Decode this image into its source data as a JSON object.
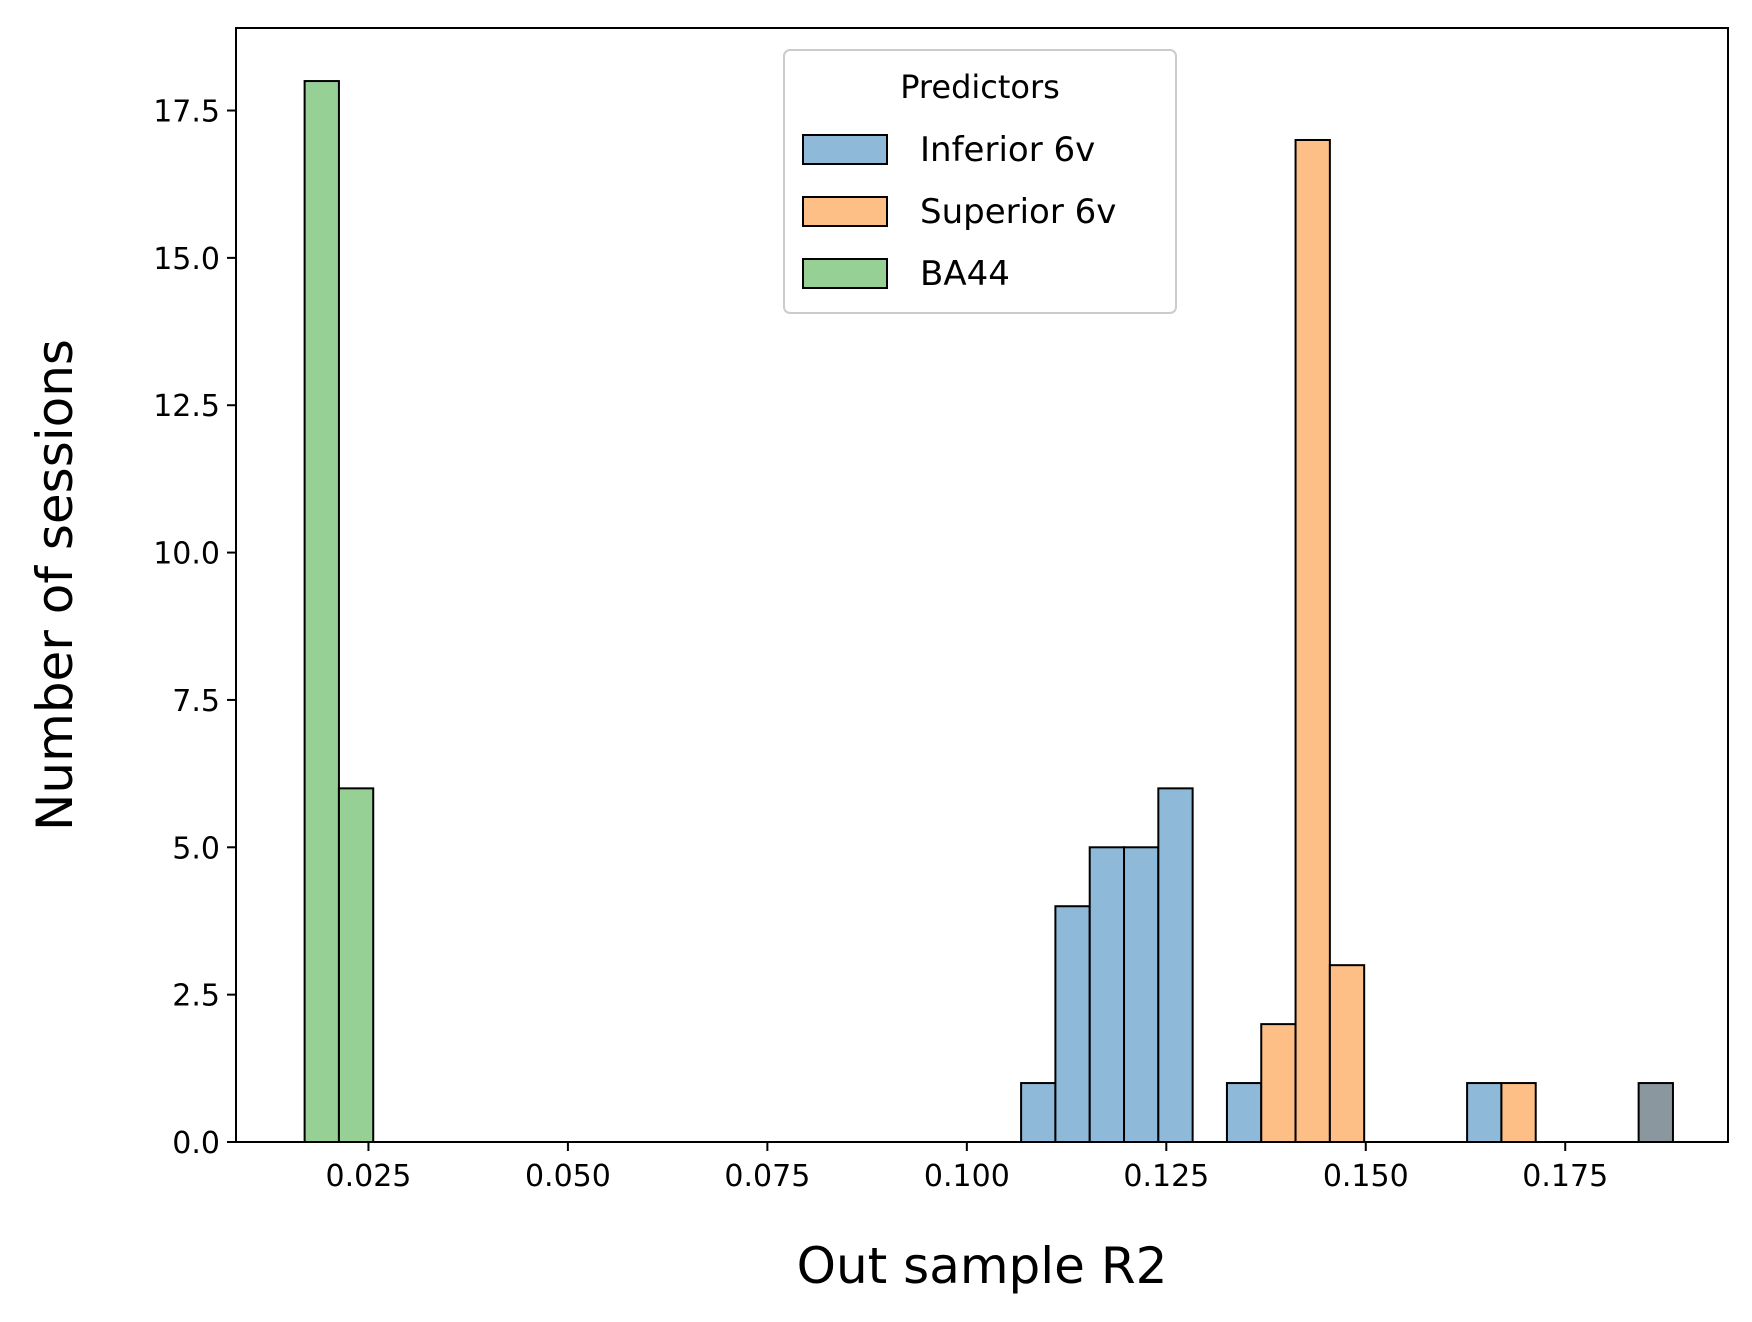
{
  "chart_data": {
    "type": "bar",
    "title": "",
    "xlabel": "Out sample R2",
    "ylabel": "Number of sessions",
    "xlim": [
      0.0084,
      0.1954
    ],
    "ylim": [
      0,
      18.9
    ],
    "xticks": [
      0.025,
      0.05,
      0.075,
      0.1,
      0.125,
      0.15,
      0.175
    ],
    "xtick_labels": [
      "0.025",
      "0.050",
      "0.075",
      "0.100",
      "0.125",
      "0.150",
      "0.175"
    ],
    "yticks": [
      0,
      2.5,
      5,
      7.5,
      10,
      12.5,
      15,
      17.5
    ],
    "ytick_labels": [
      "0.0",
      "2.5",
      "5.0",
      "7.5",
      "10.0",
      "12.5",
      "15.0",
      "17.5"
    ],
    "grid": false,
    "legend": {
      "title": "Predictors",
      "position": "top-center"
    },
    "bin_width": 0.0043,
    "series": [
      {
        "name": "Inferior 6v",
        "color": "#8fb9d9",
        "bins": [
          {
            "x_start": 0.1068,
            "count": 1
          },
          {
            "x_start": 0.1111,
            "count": 4
          },
          {
            "x_start": 0.1154,
            "count": 5
          },
          {
            "x_start": 0.1197,
            "count": 5
          },
          {
            "x_start": 0.124,
            "count": 6
          },
          {
            "x_start": 0.1326,
            "count": 1
          },
          {
            "x_start": 0.1627,
            "count": 1
          }
        ]
      },
      {
        "name": "Superior 6v",
        "color": "#fdbf86",
        "bins": [
          {
            "x_start": 0.1369,
            "count": 2
          },
          {
            "x_start": 0.1412,
            "count": 17
          },
          {
            "x_start": 0.1455,
            "count": 3
          },
          {
            "x_start": 0.167,
            "count": 1
          }
        ]
      },
      {
        "name": "BA44",
        "color": "#97d095",
        "bins": [
          {
            "x_start": 0.017,
            "count": 18
          },
          {
            "x_start": 0.0213,
            "count": 6
          }
        ]
      },
      {
        "name": "",
        "color": "#8a979e",
        "bins": [
          {
            "x_start": 0.1842,
            "count": 1
          }
        ]
      }
    ]
  }
}
